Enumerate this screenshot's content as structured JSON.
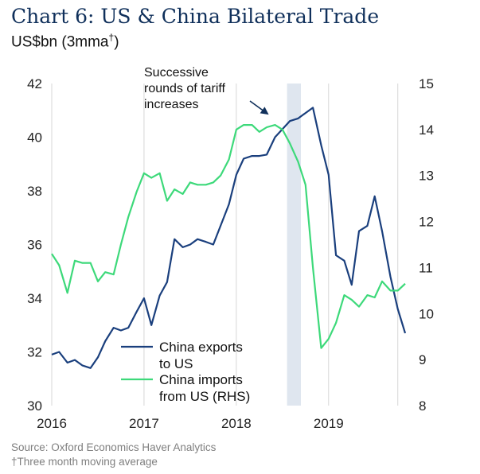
{
  "header": {
    "title": "Chart 6: US & China Bilateral Trade",
    "subtitle": "US$bn (3mma",
    "subtitle_mark": "†",
    "subtitle_close": ")"
  },
  "footer": {
    "source": "Source: Oxford Economics Haver Analytics",
    "footnote": "†Three month moving average"
  },
  "colors": {
    "exports": "#1a3f7d",
    "imports": "#3dd97a",
    "band": "#dfe6ef",
    "grid": "#d7d7d7"
  },
  "chart_data": {
    "type": "line",
    "title": "Chart 6: US & China Bilateral Trade",
    "subtitle": "US$bn (3mma†)",
    "x_ticks": [
      "2016",
      "2017",
      "2018",
      "2019"
    ],
    "xlim": [
      2016.0,
      2019.83
    ],
    "y_left": {
      "ticks": [
        30,
        32,
        34,
        36,
        38,
        40,
        42
      ],
      "range": [
        30,
        42
      ]
    },
    "y_right": {
      "ticks": [
        8,
        9,
        10,
        11,
        12,
        13,
        14,
        15
      ],
      "range": [
        8,
        15
      ]
    },
    "grid": true,
    "legend": {
      "position": "bottom-left-center"
    },
    "shaded_band": {
      "x0": 2018.55,
      "x1": 2018.7
    },
    "annotation": {
      "lines": [
        "Successive",
        "rounds of tariff",
        "increases"
      ]
    },
    "series": [
      {
        "name": "China exports to US",
        "label_lines": [
          "China exports",
          "to US"
        ],
        "axis": "left",
        "x": [
          2016.0,
          2016.08,
          2016.17,
          2016.25,
          2016.33,
          2016.42,
          2016.5,
          2016.58,
          2016.67,
          2016.75,
          2016.83,
          2016.92,
          2017.0,
          2017.08,
          2017.17,
          2017.25,
          2017.33,
          2017.42,
          2017.5,
          2017.58,
          2017.67,
          2017.75,
          2017.83,
          2017.92,
          2018.0,
          2018.08,
          2018.17,
          2018.25,
          2018.33,
          2018.42,
          2018.5,
          2018.58,
          2018.67,
          2018.75,
          2018.83,
          2018.92,
          2019.0,
          2019.08,
          2019.17,
          2019.25,
          2019.33,
          2019.42,
          2019.5,
          2019.58,
          2019.67,
          2019.75,
          2019.83
        ],
        "values": [
          31.9,
          32.0,
          31.6,
          31.7,
          31.5,
          31.4,
          31.8,
          32.4,
          32.9,
          32.8,
          32.9,
          33.5,
          34.0,
          33.0,
          34.1,
          34.6,
          36.2,
          35.9,
          36.0,
          36.2,
          36.1,
          36.0,
          36.7,
          37.5,
          38.6,
          39.2,
          39.3,
          39.3,
          39.35,
          40.0,
          40.3,
          40.6,
          40.7,
          40.9,
          41.1,
          39.7,
          38.6,
          35.6,
          35.4,
          34.5,
          36.5,
          36.7,
          37.8,
          36.5,
          34.8,
          33.6,
          32.7
        ]
      },
      {
        "name": "China imports from US (RHS)",
        "label_lines": [
          "China imports",
          "from US (RHS)"
        ],
        "axis": "right",
        "x": [
          2016.0,
          2016.08,
          2016.17,
          2016.25,
          2016.33,
          2016.42,
          2016.5,
          2016.58,
          2016.67,
          2016.75,
          2016.83,
          2016.92,
          2017.0,
          2017.08,
          2017.17,
          2017.25,
          2017.33,
          2017.42,
          2017.5,
          2017.58,
          2017.67,
          2017.75,
          2017.83,
          2017.92,
          2018.0,
          2018.08,
          2018.17,
          2018.25,
          2018.33,
          2018.42,
          2018.5,
          2018.58,
          2018.67,
          2018.75,
          2018.83,
          2018.92,
          2019.0,
          2019.08,
          2019.17,
          2019.25,
          2019.33,
          2019.42,
          2019.5,
          2019.58,
          2019.67,
          2019.75,
          2019.83
        ],
        "values": [
          11.3,
          11.05,
          10.45,
          11.15,
          11.1,
          11.1,
          10.7,
          10.9,
          10.85,
          11.5,
          12.1,
          12.65,
          13.05,
          12.95,
          13.05,
          12.45,
          12.7,
          12.6,
          12.85,
          12.8,
          12.8,
          12.85,
          13.0,
          13.35,
          14.0,
          14.1,
          14.1,
          13.95,
          14.05,
          14.1,
          14.0,
          13.7,
          13.3,
          12.8,
          11.0,
          9.25,
          9.45,
          9.8,
          10.4,
          10.3,
          10.15,
          10.4,
          10.35,
          10.7,
          10.5,
          10.5,
          10.65
        ]
      }
    ]
  }
}
